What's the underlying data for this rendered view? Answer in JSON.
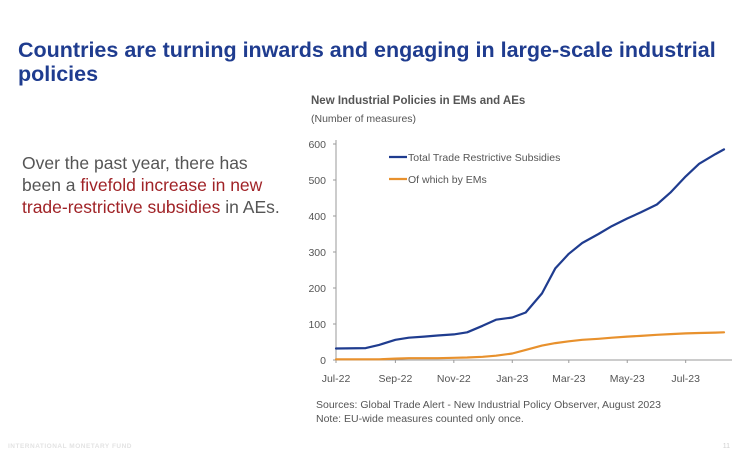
{
  "slide": {
    "title": "Countries are turning inwards and engaging in large-scale industrial policies",
    "body": {
      "part1": "Over the past year, there has been a ",
      "highlight": "fivefold increase in new trade-restrictive subsidies",
      "part2": " in AEs."
    },
    "source": "Sources: Global Trade Alert -  New Industrial Policy Observer, August 2023",
    "note": "Note: EU-wide measures counted only once.",
    "footer_left": "INTERNATIONAL MONETARY FUND",
    "page_number": "11"
  },
  "colors": {
    "title": "#1f3c8f",
    "highlight": "#a02327",
    "series_total": "#1f3c8f",
    "series_em": "#e8912d",
    "axis": "#9a9a9a",
    "text": "#555555"
  },
  "chart_data": {
    "type": "line",
    "title": "New Industrial Policies in EMs and AEs",
    "subtitle": "(Number of measures)",
    "xlabel": "",
    "ylabel": "",
    "ylim": [
      0,
      600
    ],
    "yticks": [
      0,
      100,
      200,
      300,
      400,
      500,
      600
    ],
    "x_tick_labels": [
      "Jul-22",
      "Sep-22",
      "Nov-22",
      "Jan-23",
      "Mar-23",
      "May-23",
      "Jul-23"
    ],
    "xlim": [
      "2022-07-01",
      "2023-08-10"
    ],
    "grid": false,
    "legend_position": "top-left",
    "x": [
      "2022-07-01",
      "2022-08-01",
      "2022-08-15",
      "2022-09-01",
      "2022-09-15",
      "2022-10-01",
      "2022-10-15",
      "2022-11-01",
      "2022-11-15",
      "2022-12-01",
      "2022-12-15",
      "2023-01-01",
      "2023-01-15",
      "2023-02-01",
      "2023-02-15",
      "2023-03-01",
      "2023-03-15",
      "2023-04-01",
      "2023-04-15",
      "2023-05-01",
      "2023-05-15",
      "2023-06-01",
      "2023-06-15",
      "2023-07-01",
      "2023-07-15",
      "2023-08-01",
      "2023-08-10"
    ],
    "series": [
      {
        "name": "Total Trade Restrictive Subsidies",
        "color": "#1f3c8f",
        "values": [
          32,
          33,
          42,
          56,
          62,
          65,
          68,
          71,
          77,
          95,
          112,
          118,
          132,
          185,
          255,
          295,
          325,
          350,
          372,
          393,
          410,
          432,
          465,
          510,
          545,
          572,
          585
        ]
      },
      {
        "name": "Of which by EMs",
        "color": "#e8912d",
        "values": [
          2,
          2,
          2,
          4,
          5,
          5,
          5,
          6,
          7,
          9,
          12,
          18,
          28,
          40,
          47,
          52,
          56,
          59,
          62,
          65,
          67,
          70,
          72,
          74,
          75,
          76,
          77
        ]
      }
    ]
  }
}
